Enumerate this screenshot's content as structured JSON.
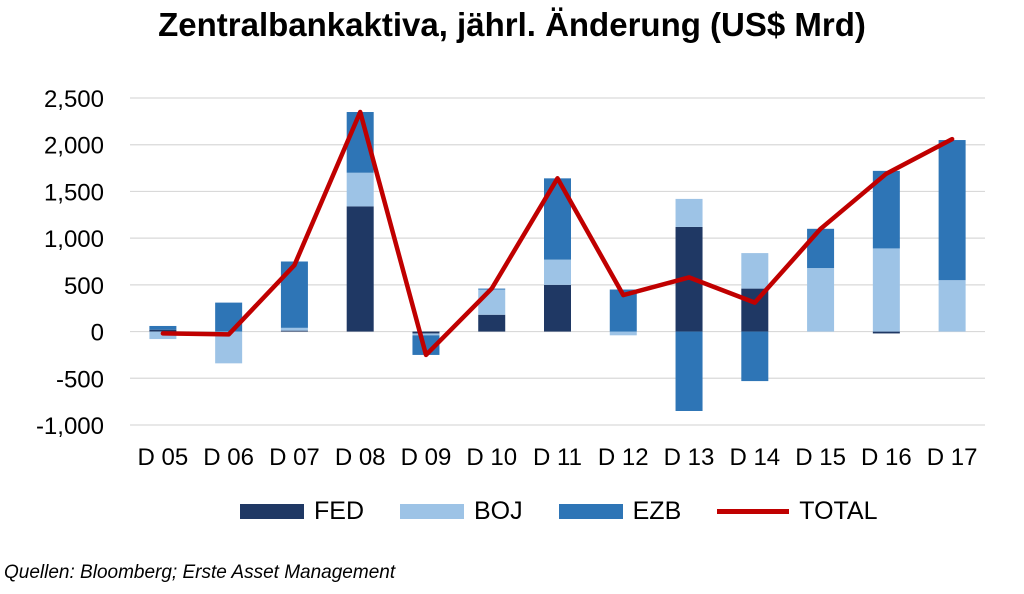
{
  "title": "Zentralbankaktiva, jährl. Änderung (US$ Mrd)",
  "source": "Quellen: Bloomberg; Erste Asset Management",
  "colors": {
    "FED": "#1f3864",
    "BOJ": "#9dc3e6",
    "EZB": "#2e75b6",
    "TOTAL": "#c00000",
    "grid": "#d9d9d9"
  },
  "legend": [
    {
      "name": "FED",
      "kind": "box"
    },
    {
      "name": "BOJ",
      "kind": "box"
    },
    {
      "name": "EZB",
      "kind": "box"
    },
    {
      "name": "TOTAL",
      "kind": "line"
    }
  ],
  "chart_data": {
    "type": "bar",
    "stacked": true,
    "title": "Zentralbankaktiva, jährl. Änderung (US$ Mrd)",
    "categories": [
      "D 05",
      "D 06",
      "D 07",
      "D 08",
      "D 09",
      "D 10",
      "D 11",
      "D 12",
      "D 13",
      "D 14",
      "D 15",
      "D 16",
      "D 17"
    ],
    "series": [
      {
        "name": "FED",
        "values": [
          20,
          0,
          10,
          1340,
          -20,
          180,
          500,
          0,
          1120,
          460,
          0,
          -20,
          0
        ]
      },
      {
        "name": "BOJ",
        "values": [
          -80,
          -340,
          30,
          360,
          -20,
          270,
          270,
          -40,
          300,
          380,
          680,
          890,
          550
        ]
      },
      {
        "name": "EZB",
        "values": [
          40,
          310,
          710,
          650,
          -210,
          10,
          870,
          450,
          -850,
          -530,
          420,
          830,
          1500
        ]
      }
    ],
    "line_series": {
      "name": "TOTAL",
      "values": [
        -20,
        -30,
        710,
        2350,
        -250,
        460,
        1640,
        390,
        580,
        310,
        1100,
        1690,
        2060
      ]
    },
    "y_ticks": [
      -1000,
      -500,
      0,
      500,
      1000,
      1500,
      2000,
      2500
    ],
    "y_tick_labels": [
      "-1,000",
      "-500",
      "0",
      "500",
      "1,000",
      "1,500",
      "2,000",
      "2,500"
    ],
    "ylim": [
      -1000,
      2500
    ],
    "grid": true,
    "legend_position": "bottom"
  }
}
